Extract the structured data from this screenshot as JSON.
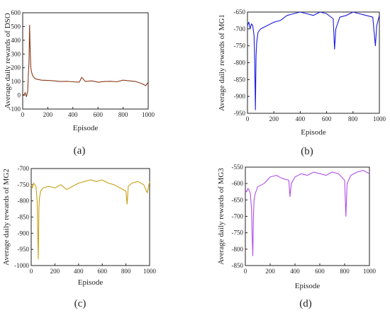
{
  "chart_data": [
    {
      "panel": "(a)",
      "type": "line",
      "xlabel": "Episode",
      "ylabel": "Average daily rewards of DSO",
      "xlim": [
        0,
        1000
      ],
      "ylim": [
        -100,
        600
      ],
      "xticks": [
        0,
        200,
        400,
        600,
        800,
        1000
      ],
      "yticks": [
        -100,
        0,
        100,
        200,
        300,
        400,
        500,
        600
      ],
      "series": [
        {
          "color": "#8a3a1a",
          "x": [
            0,
            10,
            20,
            30,
            40,
            45,
            50,
            55,
            60,
            65,
            70,
            80,
            100,
            150,
            200,
            250,
            300,
            350,
            400,
            450,
            470,
            500,
            550,
            600,
            650,
            700,
            750,
            800,
            850,
            900,
            950,
            980,
            1000
          ],
          "y": [
            10,
            0,
            20,
            -10,
            30,
            150,
            240,
            510,
            330,
            200,
            170,
            140,
            120,
            110,
            108,
            105,
            100,
            102,
            98,
            95,
            130,
            100,
            105,
            95,
            100,
            102,
            98,
            110,
            105,
            100,
            85,
            70,
            95
          ]
        }
      ]
    },
    {
      "panel": "(b)",
      "type": "line",
      "xlabel": "Episode",
      "ylabel": "Average daily rewards of MG1",
      "xlim": [
        0,
        1000
      ],
      "ylim": [
        -950,
        -650
      ],
      "xticks": [
        0,
        200,
        400,
        600,
        800,
        1000
      ],
      "yticks": [
        -950,
        -900,
        -850,
        -800,
        -750,
        -700,
        -650
      ],
      "series": [
        {
          "color": "#1a1adc",
          "x": [
            0,
            10,
            20,
            30,
            40,
            50,
            55,
            60,
            65,
            70,
            80,
            100,
            150,
            200,
            250,
            300,
            350,
            400,
            450,
            500,
            550,
            600,
            650,
            660,
            670,
            700,
            750,
            800,
            850,
            900,
            950,
            970,
            980,
            1000
          ],
          "y": [
            -690,
            -680,
            -700,
            -685,
            -690,
            -720,
            -800,
            -940,
            -780,
            -740,
            -710,
            -700,
            -690,
            -680,
            -675,
            -660,
            -655,
            -650,
            -655,
            -660,
            -650,
            -655,
            -670,
            -760,
            -700,
            -665,
            -660,
            -650,
            -655,
            -660,
            -665,
            -750,
            -690,
            -660
          ]
        }
      ]
    },
    {
      "panel": "(c)",
      "type": "line",
      "xlabel": "Episode",
      "ylabel": "Average daily rewards of MG2",
      "xlim": [
        0,
        1000
      ],
      "ylim": [
        -1000,
        -700
      ],
      "xticks": [
        0,
        200,
        400,
        600,
        800,
        1000
      ],
      "yticks": [
        -1000,
        -950,
        -900,
        -850,
        -800,
        -750,
        -700
      ],
      "series": [
        {
          "color": "#c8a012",
          "x": [
            0,
            10,
            20,
            30,
            40,
            50,
            55,
            60,
            65,
            70,
            80,
            100,
            150,
            200,
            250,
            300,
            350,
            400,
            450,
            500,
            550,
            600,
            650,
            700,
            750,
            800,
            810,
            820,
            850,
            900,
            950,
            980,
            1000
          ],
          "y": [
            -750,
            -760,
            -745,
            -750,
            -755,
            -800,
            -900,
            -980,
            -820,
            -790,
            -770,
            -760,
            -755,
            -760,
            -750,
            -765,
            -755,
            -745,
            -740,
            -735,
            -740,
            -735,
            -745,
            -750,
            -760,
            -770,
            -810,
            -755,
            -745,
            -740,
            -750,
            -775,
            -740
          ]
        }
      ]
    },
    {
      "panel": "(d)",
      "type": "line",
      "xlabel": "Episode",
      "ylabel": "Average daily rewards of MG3",
      "xlim": [
        0,
        1000
      ],
      "ylim": [
        -850,
        -550
      ],
      "xticks": [
        0,
        200,
        400,
        600,
        800,
        1000
      ],
      "yticks": [
        -850,
        -800,
        -750,
        -700,
        -650,
        -600,
        -550
      ],
      "series": [
        {
          "color": "#b04ee8",
          "x": [
            0,
            10,
            20,
            30,
            40,
            50,
            55,
            60,
            65,
            70,
            80,
            100,
            150,
            200,
            250,
            300,
            350,
            360,
            370,
            400,
            450,
            500,
            550,
            600,
            650,
            700,
            750,
            800,
            810,
            820,
            850,
            900,
            950,
            1000
          ],
          "y": [
            -620,
            -625,
            -615,
            -620,
            -630,
            -680,
            -760,
            -820,
            -700,
            -650,
            -630,
            -610,
            -600,
            -580,
            -575,
            -585,
            -590,
            -640,
            -600,
            -580,
            -570,
            -575,
            -565,
            -570,
            -575,
            -565,
            -570,
            -590,
            -700,
            -600,
            -575,
            -565,
            -560,
            -570
          ]
        }
      ]
    }
  ]
}
